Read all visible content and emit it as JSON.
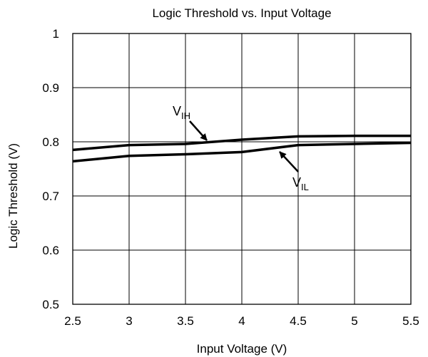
{
  "chart_data": {
    "type": "line",
    "title": "Logic Threshold vs. Input Voltage",
    "xlabel": "Input Voltage (V)",
    "ylabel": "Logic Threshold (V)",
    "xlim": [
      2.5,
      5.5
    ],
    "ylim": [
      0.5,
      1.0
    ],
    "x_ticks": [
      "2.5",
      "3",
      "3.5",
      "4",
      "4.5",
      "5",
      "5.5"
    ],
    "y_ticks": [
      "0.5",
      "0.6",
      "0.7",
      "0.8",
      "0.9",
      "1"
    ],
    "grid": true,
    "x": [
      2.5,
      3.0,
      3.5,
      4.0,
      4.5,
      5.0,
      5.5
    ],
    "series": [
      {
        "name": "VIH",
        "values": [
          0.785,
          0.794,
          0.796,
          0.804,
          0.81,
          0.811,
          0.811
        ]
      },
      {
        "name": "VIL",
        "values": [
          0.764,
          0.774,
          0.777,
          0.781,
          0.794,
          0.796,
          0.798
        ]
      }
    ],
    "annotations": [
      {
        "main": "V",
        "sub": "IH"
      },
      {
        "main": "V",
        "sub": "IL"
      }
    ],
    "line_color": "#000000"
  }
}
